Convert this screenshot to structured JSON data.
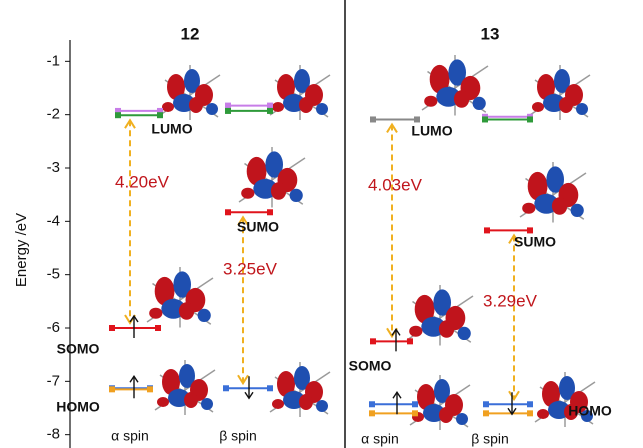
{
  "axis": {
    "label": "Energy /eV",
    "ylim": [
      -8.25,
      0.15
    ],
    "yticks": [
      -1,
      -2,
      -3,
      -4,
      -5,
      -6,
      -7,
      -8
    ]
  },
  "panels": [
    {
      "title": "12",
      "spin_labels": [
        "α spin",
        "β spin"
      ],
      "orbital_labels": [
        "LUMO",
        "SUMO",
        "SOMO",
        "HOMO"
      ],
      "gap_labels": [
        "4.20eV",
        "3.25eV"
      ],
      "levels": [
        {
          "energy": -1.93,
          "color": "#c77de8"
        },
        {
          "energy": -2.01,
          "color": "#2e9a3a"
        },
        {
          "energy": -1.83,
          "color": "#c77de8"
        },
        {
          "energy": -1.93,
          "color": "#2e9a3a"
        },
        {
          "energy": -6.0,
          "color": "#e0141c"
        },
        {
          "energy": -3.83,
          "color": "#e0141c"
        },
        {
          "energy": -7.13,
          "color": "#3a6fd8"
        },
        {
          "energy": -7.15,
          "color": "#f0a020"
        },
        {
          "energy": -7.13,
          "color": "#3a6fd8"
        }
      ]
    },
    {
      "title": "13",
      "spin_labels": [
        "α spin",
        "β spin"
      ],
      "orbital_labels": [
        "LUMO",
        "SUMO",
        "SOMO",
        "HOMO"
      ],
      "gap_labels": [
        "4.03eV",
        "3.29eV"
      ],
      "levels": [
        {
          "energy": -2.09,
          "color": "#888888"
        },
        {
          "energy": -2.04,
          "color": "#c77de8"
        },
        {
          "energy": -2.09,
          "color": "#2e9a3a"
        },
        {
          "energy": -6.25,
          "color": "#e0141c"
        },
        {
          "energy": -4.17,
          "color": "#e0141c"
        },
        {
          "energy": -7.43,
          "color": "#3a6fd8"
        },
        {
          "energy": -7.6,
          "color": "#f0a020"
        },
        {
          "energy": -7.43,
          "color": "#3a6fd8"
        },
        {
          "energy": -7.6,
          "color": "#f0a020"
        }
      ]
    }
  ]
}
